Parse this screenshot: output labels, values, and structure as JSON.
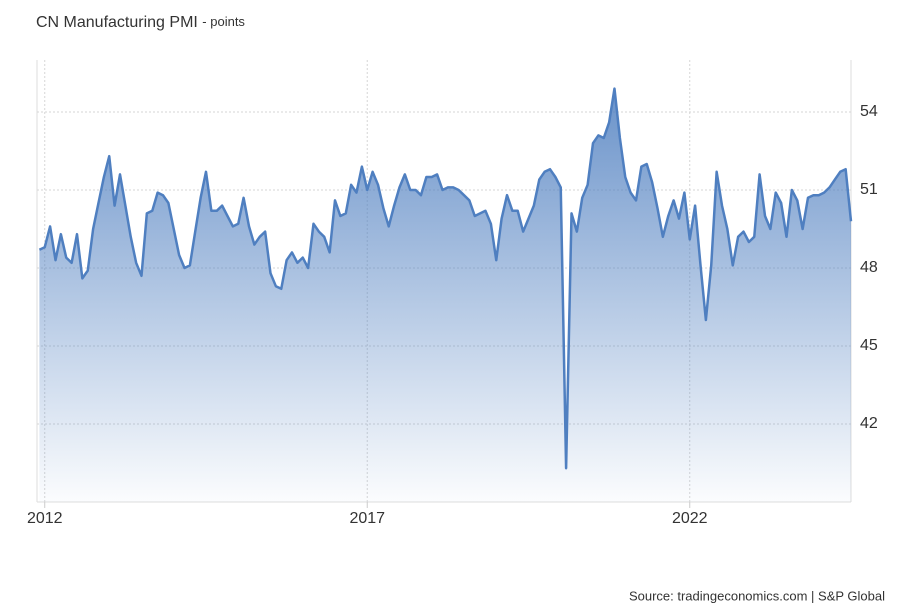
{
  "chart_data": {
    "type": "area",
    "title": "CN Manufacturing PMI",
    "subtitle": "- points",
    "source": "Source: tradingeconomics.com | S&P Global",
    "x": [
      2011.917,
      2012,
      2012.083,
      2012.167,
      2012.25,
      2012.333,
      2012.417,
      2012.5,
      2012.583,
      2012.667,
      2012.75,
      2012.833,
      2012.917,
      2013,
      2013.083,
      2013.167,
      2013.25,
      2013.333,
      2013.417,
      2013.5,
      2013.583,
      2013.667,
      2013.75,
      2013.833,
      2013.917,
      2014,
      2014.083,
      2014.167,
      2014.25,
      2014.333,
      2014.417,
      2014.5,
      2014.583,
      2014.667,
      2014.75,
      2014.833,
      2014.917,
      2015,
      2015.083,
      2015.167,
      2015.25,
      2015.333,
      2015.417,
      2015.5,
      2015.583,
      2015.667,
      2015.75,
      2015.833,
      2015.917,
      2016,
      2016.083,
      2016.167,
      2016.25,
      2016.333,
      2016.417,
      2016.5,
      2016.583,
      2016.667,
      2016.75,
      2016.833,
      2016.917,
      2017,
      2017.083,
      2017.167,
      2017.25,
      2017.333,
      2017.417,
      2017.5,
      2017.583,
      2017.667,
      2017.75,
      2017.833,
      2017.917,
      2018,
      2018.083,
      2018.167,
      2018.25,
      2018.333,
      2018.417,
      2018.5,
      2018.583,
      2018.667,
      2018.75,
      2018.833,
      2018.917,
      2019,
      2019.083,
      2019.167,
      2019.25,
      2019.333,
      2019.417,
      2019.5,
      2019.583,
      2019.667,
      2019.75,
      2019.833,
      2019.917,
      2020,
      2020.083,
      2020.167,
      2020.25,
      2020.333,
      2020.417,
      2020.5,
      2020.583,
      2020.667,
      2020.75,
      2020.833,
      2020.917,
      2021,
      2021.083,
      2021.167,
      2021.25,
      2021.333,
      2021.417,
      2021.5,
      2021.583,
      2021.667,
      2021.75,
      2021.833,
      2021.917,
      2022,
      2022.083,
      2022.167,
      2022.25,
      2022.333,
      2022.417,
      2022.5,
      2022.583,
      2022.667,
      2022.75,
      2022.833,
      2022.917,
      2023,
      2023.083,
      2023.167,
      2023.25,
      2023.333,
      2023.417,
      2023.5,
      2023.583,
      2023.667,
      2023.75,
      2023.833,
      2023.917,
      2024,
      2024.083,
      2024.167,
      2024.25,
      2024.333,
      2024.417,
      2024.5
    ],
    "series": [
      {
        "color": "#4f7fc0",
        "values": [
          48.7,
          48.8,
          49.6,
          48.3,
          49.3,
          48.4,
          48.2,
          49.3,
          47.6,
          47.9,
          49.5,
          50.5,
          51.5,
          52.3,
          50.4,
          51.6,
          50.4,
          49.2,
          48.2,
          47.7,
          50.1,
          50.2,
          50.9,
          50.8,
          50.5,
          49.5,
          48.5,
          48.0,
          48.1,
          49.4,
          50.7,
          51.7,
          50.2,
          50.2,
          50.4,
          50.0,
          49.6,
          49.7,
          50.7,
          49.6,
          48.9,
          49.2,
          49.4,
          47.8,
          47.3,
          47.2,
          48.3,
          48.6,
          48.2,
          48.4,
          48.0,
          49.7,
          49.4,
          49.2,
          48.6,
          50.6,
          50.0,
          50.1,
          51.2,
          50.9,
          51.9,
          51.0,
          51.7,
          51.2,
          50.3,
          49.6,
          50.4,
          51.1,
          51.6,
          51.0,
          51.0,
          50.8,
          51.5,
          51.5,
          51.6,
          51.0,
          51.1,
          51.1,
          51.0,
          50.8,
          50.6,
          50.0,
          50.1,
          50.2,
          49.7,
          48.3,
          49.9,
          50.8,
          50.2,
          50.2,
          49.4,
          49.9,
          50.4,
          51.4,
          51.7,
          51.8,
          51.5,
          51.1,
          40.3,
          50.1,
          49.4,
          50.7,
          51.2,
          52.8,
          53.1,
          53.0,
          53.6,
          54.9,
          53.0,
          51.5,
          50.9,
          50.6,
          51.9,
          52.0,
          51.3,
          50.3,
          49.2,
          50.0,
          50.6,
          49.9,
          50.9,
          49.1,
          50.4,
          48.1,
          46.0,
          48.1,
          51.7,
          50.4,
          49.5,
          48.1,
          49.2,
          49.4,
          49.0,
          49.2,
          51.6,
          50.0,
          49.5,
          50.9,
          50.5,
          49.2,
          51.0,
          50.6,
          49.5,
          50.7,
          50.8,
          50.8,
          50.9,
          51.1,
          51.4,
          51.7,
          51.8,
          49.8
        ]
      }
    ],
    "xlim": [
      2011.88,
      2024.5
    ],
    "xticks": [
      2012,
      2017,
      2022
    ],
    "ylim": [
      39,
      56
    ],
    "yticks": [
      42,
      45,
      48,
      51,
      54
    ],
    "grid": true
  }
}
